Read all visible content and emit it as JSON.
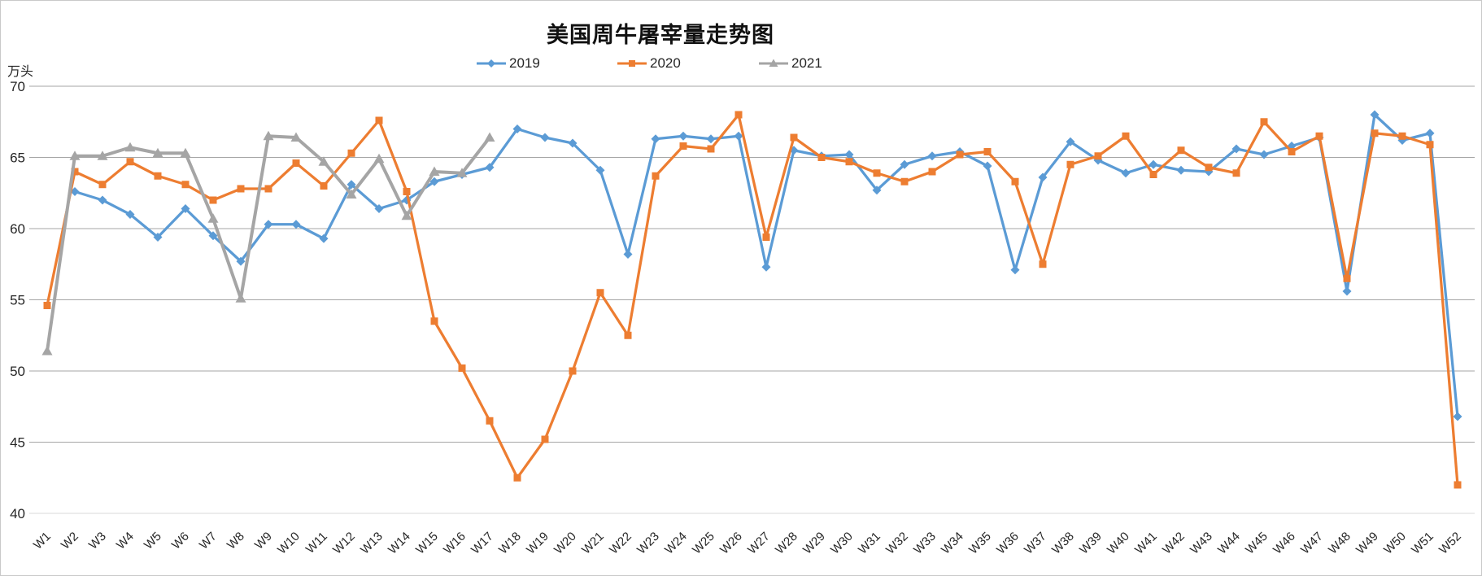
{
  "chart_data": {
    "type": "line",
    "title": "美国周牛屠宰量走势图",
    "ylabel": "万头",
    "ylim": [
      40,
      70
    ],
    "y_ticks": [
      70,
      65,
      60,
      55,
      50,
      45,
      40
    ],
    "grid": true,
    "legend_position": "top",
    "categories": [
      "W1",
      "W2",
      "W3",
      "W4",
      "W5",
      "W6",
      "W7",
      "W8",
      "W9",
      "W10",
      "W11",
      "W12",
      "W13",
      "W14",
      "W15",
      "W16",
      "W17",
      "W18",
      "W19",
      "W20",
      "W21",
      "W22",
      "W23",
      "W24",
      "W25",
      "W26",
      "W27",
      "W28",
      "W29",
      "W30",
      "W31",
      "W32",
      "W33",
      "W34",
      "W35",
      "W36",
      "W37",
      "W38",
      "W39",
      "W40",
      "W41",
      "W42",
      "W43",
      "W44",
      "W45",
      "W46",
      "W47",
      "W48",
      "W49",
      "W50",
      "W51",
      "W52"
    ],
    "series": [
      {
        "name": "2019",
        "color": "#5B9BD5",
        "marker": "diamond",
        "values": [
          null,
          62.6,
          62.0,
          61.0,
          59.4,
          61.4,
          59.5,
          57.7,
          60.3,
          60.3,
          59.3,
          63.1,
          61.4,
          62.0,
          63.3,
          63.8,
          64.3,
          67.0,
          66.4,
          66.0,
          64.1,
          58.2,
          66.3,
          66.5,
          66.3,
          66.5,
          57.3,
          65.5,
          65.1,
          65.2,
          62.7,
          64.5,
          65.1,
          65.4,
          64.4,
          57.1,
          63.6,
          66.1,
          64.8,
          63.9,
          64.5,
          64.1,
          64.0,
          65.6,
          65.2,
          65.8,
          66.4,
          55.6,
          68.0,
          66.2,
          66.7,
          46.8
        ]
      },
      {
        "name": "2020",
        "color": "#ED7D31",
        "marker": "square",
        "values": [
          54.6,
          64.0,
          63.1,
          64.7,
          63.7,
          63.1,
          62.0,
          62.8,
          62.8,
          64.6,
          63.0,
          65.3,
          67.6,
          62.6,
          53.5,
          50.2,
          46.5,
          42.5,
          45.2,
          50.0,
          55.5,
          52.5,
          63.7,
          65.8,
          65.6,
          68.0,
          59.4,
          66.4,
          65.0,
          64.7,
          63.9,
          63.3,
          64.0,
          65.2,
          65.4,
          63.3,
          57.5,
          64.5,
          65.1,
          66.5,
          63.8,
          65.5,
          64.3,
          63.9,
          67.5,
          65.4,
          66.5,
          56.5,
          66.7,
          66.5,
          65.9,
          42.0
        ]
      },
      {
        "name": "2021",
        "color": "#A5A5A5",
        "marker": "triangle",
        "values": [
          51.4,
          65.1,
          65.1,
          65.7,
          65.3,
          65.3,
          60.7,
          55.1,
          66.5,
          66.4,
          64.7,
          62.4,
          64.9,
          60.9,
          64.0,
          63.9,
          66.4,
          null,
          null,
          null,
          null,
          null,
          null,
          null,
          null,
          null,
          null,
          null,
          null,
          null,
          null,
          null,
          null,
          null,
          null,
          null,
          null,
          null,
          null,
          null,
          null,
          null,
          null,
          null,
          null,
          null,
          null,
          null,
          null,
          null,
          null,
          null
        ]
      }
    ]
  },
  "style": {
    "gridline_color": "#A6A6A6",
    "baseline_color": "#D9D9D9",
    "axis_text_color": "#262626"
  }
}
